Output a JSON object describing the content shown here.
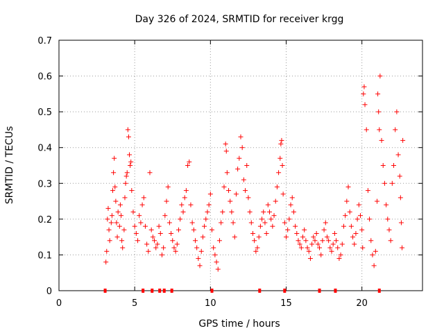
{
  "chart_data": {
    "type": "scatter",
    "title": "Day 326 of 2024, SRMTID for receiver krgg",
    "xlabel": "GPS time / hours",
    "ylabel": "SRMTID / TECUs",
    "xlim": [
      0,
      24
    ],
    "ylim": [
      0,
      0.7
    ],
    "grid": true,
    "x_ticks": [
      0,
      5,
      10,
      15,
      20
    ],
    "y_ticks": [
      0,
      0.1,
      0.2,
      0.3,
      0.4,
      0.5,
      0.6,
      0.7
    ],
    "x_tick_labels": [
      "0",
      "5",
      "10",
      "15",
      "20"
    ],
    "y_tick_labels": [
      "0",
      "0.1",
      "0.2",
      "0.3",
      "0.4",
      "0.5",
      "0.6",
      "0.7"
    ],
    "marker": "+",
    "color": "#ff0000",
    "series": [
      {
        "name": "SRMTID",
        "points": [
          [
            3.1,
            0.08
          ],
          [
            3.15,
            0.11
          ],
          [
            3.2,
            0.2
          ],
          [
            3.25,
            0.23
          ],
          [
            3.3,
            0.17
          ],
          [
            3.35,
            0.14
          ],
          [
            3.45,
            0.19
          ],
          [
            3.5,
            0.21
          ],
          [
            3.55,
            0.28
          ],
          [
            3.6,
            0.33
          ],
          [
            3.65,
            0.37
          ],
          [
            3.7,
            0.29
          ],
          [
            3.75,
            0.25
          ],
          [
            3.8,
            0.19
          ],
          [
            3.85,
            0.15
          ],
          [
            3.9,
            0.22
          ],
          [
            4.0,
            0.18
          ],
          [
            4.05,
            0.24
          ],
          [
            4.1,
            0.21
          ],
          [
            4.15,
            0.14
          ],
          [
            4.2,
            0.12
          ],
          [
            4.3,
            0.17
          ],
          [
            4.35,
            0.26
          ],
          [
            4.4,
            0.3
          ],
          [
            4.45,
            0.32
          ],
          [
            4.5,
            0.33
          ],
          [
            4.55,
            0.45
          ],
          [
            4.6,
            0.43
          ],
          [
            4.65,
            0.38
          ],
          [
            4.7,
            0.35
          ],
          [
            4.75,
            0.36
          ],
          [
            4.8,
            0.28
          ],
          [
            4.9,
            0.22
          ],
          [
            5.0,
            0.18
          ],
          [
            5.1,
            0.16
          ],
          [
            5.2,
            0.14
          ],
          [
            5.3,
            0.21
          ],
          [
            5.4,
            0.19
          ],
          [
            5.5,
            0.24
          ],
          [
            5.6,
            0.26
          ],
          [
            5.7,
            0.18
          ],
          [
            5.8,
            0.13
          ],
          [
            5.9,
            0.11
          ],
          [
            6.0,
            0.33
          ],
          [
            6.1,
            0.17
          ],
          [
            6.2,
            0.15
          ],
          [
            6.3,
            0.14
          ],
          [
            6.4,
            0.12
          ],
          [
            6.5,
            0.13
          ],
          [
            6.6,
            0.18
          ],
          [
            6.7,
            0.16
          ],
          [
            6.8,
            0.1
          ],
          [
            6.9,
            0.12
          ],
          [
            7.0,
            0.21
          ],
          [
            7.1,
            0.25
          ],
          [
            7.2,
            0.29
          ],
          [
            7.3,
            0.19
          ],
          [
            7.4,
            0.16
          ],
          [
            7.5,
            0.14
          ],
          [
            7.6,
            0.12
          ],
          [
            7.7,
            0.11
          ],
          [
            7.8,
            0.13
          ],
          [
            7.9,
            0.17
          ],
          [
            8.0,
            0.2
          ],
          [
            8.1,
            0.24
          ],
          [
            8.2,
            0.22
          ],
          [
            8.3,
            0.26
          ],
          [
            8.4,
            0.28
          ],
          [
            8.5,
            0.35
          ],
          [
            8.6,
            0.36
          ],
          [
            8.7,
            0.24
          ],
          [
            8.8,
            0.19
          ],
          [
            8.9,
            0.17
          ],
          [
            9.0,
            0.14
          ],
          [
            9.1,
            0.12
          ],
          [
            9.2,
            0.09
          ],
          [
            9.3,
            0.07
          ],
          [
            9.4,
            0.11
          ],
          [
            9.5,
            0.15
          ],
          [
            9.6,
            0.18
          ],
          [
            9.7,
            0.2
          ],
          [
            9.8,
            0.22
          ],
          [
            9.9,
            0.24
          ],
          [
            10.0,
            0.27
          ],
          [
            10.1,
            0.17
          ],
          [
            10.2,
            0.12
          ],
          [
            10.3,
            0.1
          ],
          [
            10.4,
            0.08
          ],
          [
            10.5,
            0.06
          ],
          [
            10.6,
            0.14
          ],
          [
            10.7,
            0.19
          ],
          [
            10.8,
            0.22
          ],
          [
            10.9,
            0.29
          ],
          [
            11.0,
            0.41
          ],
          [
            11.05,
            0.39
          ],
          [
            11.1,
            0.33
          ],
          [
            11.2,
            0.28
          ],
          [
            11.3,
            0.25
          ],
          [
            11.4,
            0.22
          ],
          [
            11.5,
            0.19
          ],
          [
            11.6,
            0.15
          ],
          [
            11.7,
            0.27
          ],
          [
            11.8,
            0.34
          ],
          [
            11.9,
            0.37
          ],
          [
            12.0,
            0.43
          ],
          [
            12.1,
            0.4
          ],
          [
            12.2,
            0.31
          ],
          [
            12.3,
            0.28
          ],
          [
            12.4,
            0.35
          ],
          [
            12.5,
            0.26
          ],
          [
            12.6,
            0.22
          ],
          [
            12.7,
            0.19
          ],
          [
            12.8,
            0.16
          ],
          [
            12.9,
            0.14
          ],
          [
            13.0,
            0.11
          ],
          [
            13.1,
            0.12
          ],
          [
            13.2,
            0.15
          ],
          [
            13.3,
            0.18
          ],
          [
            13.4,
            0.2
          ],
          [
            13.5,
            0.22
          ],
          [
            13.6,
            0.19
          ],
          [
            13.7,
            0.16
          ],
          [
            13.8,
            0.24
          ],
          [
            13.9,
            0.22
          ],
          [
            14.0,
            0.2
          ],
          [
            14.1,
            0.18
          ],
          [
            14.2,
            0.21
          ],
          [
            14.3,
            0.25
          ],
          [
            14.4,
            0.29
          ],
          [
            14.5,
            0.33
          ],
          [
            14.6,
            0.37
          ],
          [
            14.65,
            0.41
          ],
          [
            14.7,
            0.42
          ],
          [
            14.75,
            0.35
          ],
          [
            14.8,
            0.27
          ],
          [
            14.9,
            0.19
          ],
          [
            15.0,
            0.15
          ],
          [
            15.1,
            0.17
          ],
          [
            15.2,
            0.2
          ],
          [
            15.3,
            0.24
          ],
          [
            15.4,
            0.26
          ],
          [
            15.5,
            0.22
          ],
          [
            15.6,
            0.18
          ],
          [
            15.7,
            0.16
          ],
          [
            15.8,
            0.14
          ],
          [
            15.9,
            0.13
          ],
          [
            16.0,
            0.12
          ],
          [
            16.1,
            0.15
          ],
          [
            16.2,
            0.17
          ],
          [
            16.3,
            0.14
          ],
          [
            16.4,
            0.12
          ],
          [
            16.5,
            0.11
          ],
          [
            16.6,
            0.09
          ],
          [
            16.7,
            0.13
          ],
          [
            16.8,
            0.15
          ],
          [
            16.9,
            0.14
          ],
          [
            17.0,
            0.16
          ],
          [
            17.1,
            0.13
          ],
          [
            17.2,
            0.12
          ],
          [
            17.3,
            0.1
          ],
          [
            17.4,
            0.14
          ],
          [
            17.5,
            0.17
          ],
          [
            17.6,
            0.19
          ],
          [
            17.7,
            0.15
          ],
          [
            17.8,
            0.14
          ],
          [
            17.9,
            0.12
          ],
          [
            18.0,
            0.11
          ],
          [
            18.1,
            0.13
          ],
          [
            18.2,
            0.16
          ],
          [
            18.3,
            0.14
          ],
          [
            18.4,
            0.12
          ],
          [
            18.5,
            0.09
          ],
          [
            18.6,
            0.1
          ],
          [
            18.7,
            0.13
          ],
          [
            18.8,
            0.18
          ],
          [
            18.9,
            0.21
          ],
          [
            19.0,
            0.25
          ],
          [
            19.1,
            0.29
          ],
          [
            19.2,
            0.22
          ],
          [
            19.3,
            0.18
          ],
          [
            19.4,
            0.15
          ],
          [
            19.5,
            0.13
          ],
          [
            19.6,
            0.16
          ],
          [
            19.7,
            0.2
          ],
          [
            19.8,
            0.24
          ],
          [
            19.9,
            0.21
          ],
          [
            20.0,
            0.17
          ],
          [
            20.05,
            0.12
          ],
          [
            20.1,
            0.55
          ],
          [
            20.15,
            0.57
          ],
          [
            20.2,
            0.52
          ],
          [
            20.3,
            0.45
          ],
          [
            20.4,
            0.28
          ],
          [
            20.5,
            0.2
          ],
          [
            20.6,
            0.14
          ],
          [
            20.7,
            0.1
          ],
          [
            20.8,
            0.07
          ],
          [
            20.9,
            0.11
          ],
          [
            21.0,
            0.25
          ],
          [
            21.05,
            0.55
          ],
          [
            21.1,
            0.5
          ],
          [
            21.15,
            0.45
          ],
          [
            21.2,
            0.6
          ],
          [
            21.3,
            0.42
          ],
          [
            21.4,
            0.35
          ],
          [
            21.5,
            0.3
          ],
          [
            21.6,
            0.24
          ],
          [
            21.7,
            0.2
          ],
          [
            21.8,
            0.17
          ],
          [
            21.9,
            0.14
          ],
          [
            22.0,
            0.3
          ],
          [
            22.1,
            0.35
          ],
          [
            22.2,
            0.45
          ],
          [
            22.3,
            0.5
          ],
          [
            22.4,
            0.38
          ],
          [
            22.5,
            0.32
          ],
          [
            22.55,
            0.26
          ],
          [
            22.6,
            0.19
          ],
          [
            22.65,
            0.12
          ],
          [
            22.7,
            0.42
          ]
        ]
      }
    ],
    "zero_markers_x": [
      3.05,
      5.55,
      6.15,
      6.65,
      6.95,
      7.45,
      10.1,
      13.25,
      14.9,
      17.2,
      18.25,
      21.15
    ]
  }
}
